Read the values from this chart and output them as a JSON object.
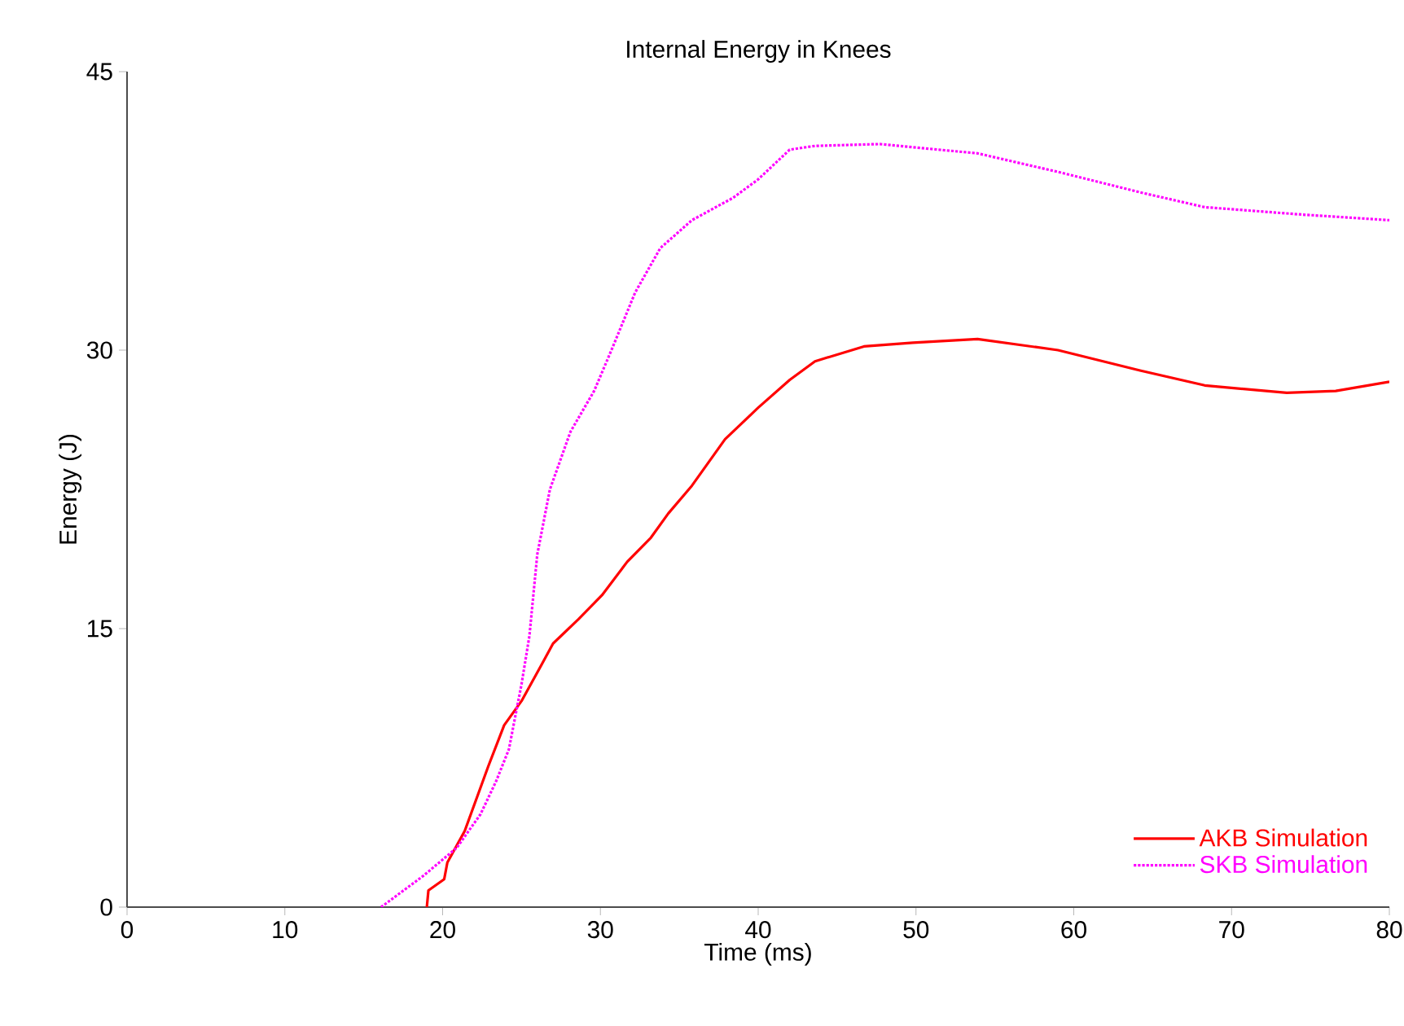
{
  "chart_data": {
    "type": "line",
    "title": "Internal Energy in Knees",
    "xlabel": "Time  (ms)",
    "ylabel": "Energy  (J)",
    "xlim": [
      0,
      80
    ],
    "xticks": [
      0,
      10,
      20,
      30,
      40,
      50,
      60,
      70,
      80
    ],
    "ylim": [
      0,
      45
    ],
    "yticks": [
      0,
      15,
      30,
      45
    ],
    "grid": false,
    "legend": "bottom right",
    "series": [
      {
        "name": "AKB Simulation",
        "color": "#ff0000",
        "line_style": "solid",
        "x": [
          19,
          19.1,
          20.1,
          20.3,
          21.4,
          22.9,
          23.9,
          25,
          26.3,
          27,
          28.6,
          30.1,
          31.7,
          33.2,
          34.3,
          35.8,
          37.9,
          40,
          42,
          43.6,
          46.7,
          49.8,
          53.9,
          59,
          64.2,
          68.3,
          73.5,
          76.6,
          80
        ],
        "values": [
          0,
          0.9,
          1.5,
          2.4,
          4.1,
          7.6,
          9.8,
          11.1,
          13.1,
          14.2,
          15.5,
          16.8,
          18.6,
          19.9,
          21.2,
          22.7,
          25.2,
          26.9,
          28.4,
          29.4,
          30.2,
          30.4,
          30.6,
          30,
          28.9,
          28.1,
          27.7,
          27.8,
          28.3
        ]
      },
      {
        "name": "SKB Simulation",
        "color": "#ff00ff",
        "line_style": "dotted",
        "x": [
          16.1,
          18.8,
          20.9,
          22.4,
          23.4,
          24.2,
          25,
          25.5,
          26,
          26.8,
          28.1,
          29.6,
          30.7,
          32.2,
          33.8,
          35.8,
          38.4,
          40,
          42,
          43.6,
          47.7,
          53.9,
          59,
          64.2,
          68.3,
          74.5,
          80
        ],
        "values": [
          0,
          1.7,
          3.2,
          5,
          6.8,
          8.5,
          12,
          14.6,
          19,
          22.5,
          25.6,
          27.8,
          30,
          33.1,
          35.5,
          37,
          38.2,
          39.2,
          40.8,
          41,
          41.1,
          40.6,
          39.6,
          38.5,
          37.7,
          37.3,
          37
        ]
      }
    ]
  }
}
